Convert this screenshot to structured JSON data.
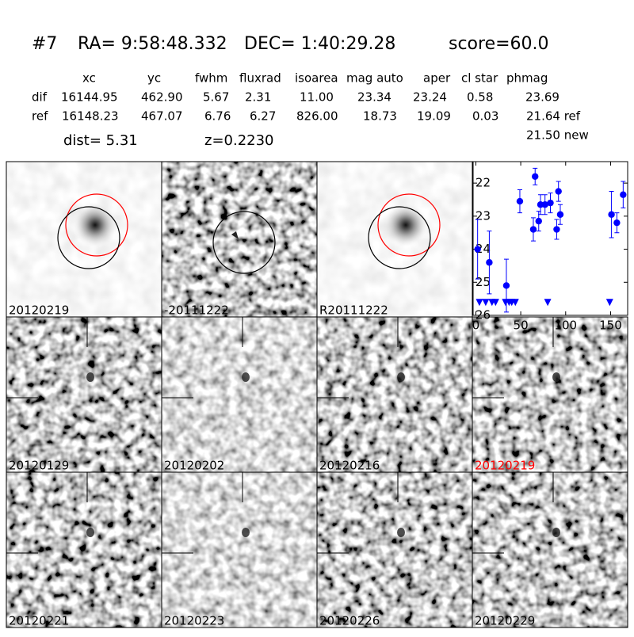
{
  "header": {
    "id": "#7",
    "ra": "RA= 9:58:48.332",
    "dec": "DEC= 1:40:29.28",
    "score": "score=60.0"
  },
  "table": {
    "columns": [
      "xc",
      "yc",
      "fwhm",
      "fluxrad",
      "isoarea",
      "mag auto",
      "aper",
      "cl star",
      "phmag"
    ],
    "rows": [
      {
        "label": "dif",
        "cells": [
          "16144.95",
          "462.90",
          "5.67",
          "2.31",
          "11.00",
          "23.34",
          "23.24",
          "0.58",
          "23.69"
        ]
      },
      {
        "label": "ref",
        "cells": [
          "16148.23",
          "467.07",
          "6.76",
          "6.27",
          "826.00",
          "18.73",
          "19.09",
          "0.03",
          "21.64 ref"
        ]
      }
    ],
    "extra": "21.50 new",
    "dist": "dist=  5.31",
    "z": "z=0.2230"
  },
  "top_panels": [
    {
      "label": "20120219",
      "color": "#000000"
    },
    {
      "label": "-20111222",
      "color": "#000000"
    },
    {
      "label": "R20111222",
      "color": "#000000"
    }
  ],
  "panels": [
    {
      "label": "20120129",
      "color": "#000000"
    },
    {
      "label": "20120202",
      "color": "#000000"
    },
    {
      "label": "20120216",
      "color": "#000000"
    },
    {
      "label": "20120219",
      "color": "#ff0000"
    },
    {
      "label": "20120221",
      "color": "#000000"
    },
    {
      "label": "20120223",
      "color": "#000000"
    },
    {
      "label": "20120226",
      "color": "#000000"
    },
    {
      "label": "20120229",
      "color": "#000000"
    }
  ],
  "chart_data": {
    "type": "scatter",
    "color": "#0000ff",
    "xlim": [
      -3,
      169
    ],
    "xticks": [
      0,
      50,
      100,
      150
    ],
    "ylim": [
      26,
      21.35
    ],
    "yticks": [
      22,
      23,
      24,
      25,
      26
    ],
    "detections": {
      "x": [
        2,
        15,
        34,
        49,
        64,
        66,
        70,
        72,
        77,
        83,
        90,
        92,
        94,
        151,
        157,
        164
      ],
      "values": [
        24.0,
        24.4,
        25.1,
        22.55,
        23.4,
        21.8,
        23.15,
        22.65,
        22.65,
        22.6,
        23.4,
        22.25,
        22.95,
        22.95,
        23.2,
        22.35
      ],
      "errors": [
        0.9,
        0.95,
        0.8,
        0.35,
        0.35,
        0.25,
        0.3,
        0.3,
        0.3,
        0.3,
        0.3,
        0.3,
        0.3,
        0.7,
        0.3,
        0.4
      ]
    },
    "limits": {
      "x": [
        4,
        11,
        18,
        22,
        33,
        37,
        40,
        44,
        80,
        149
      ],
      "values": [
        25.6,
        25.6,
        25.6,
        25.6,
        25.6,
        25.6,
        25.6,
        25.6,
        25.6,
        25.6
      ]
    }
  }
}
